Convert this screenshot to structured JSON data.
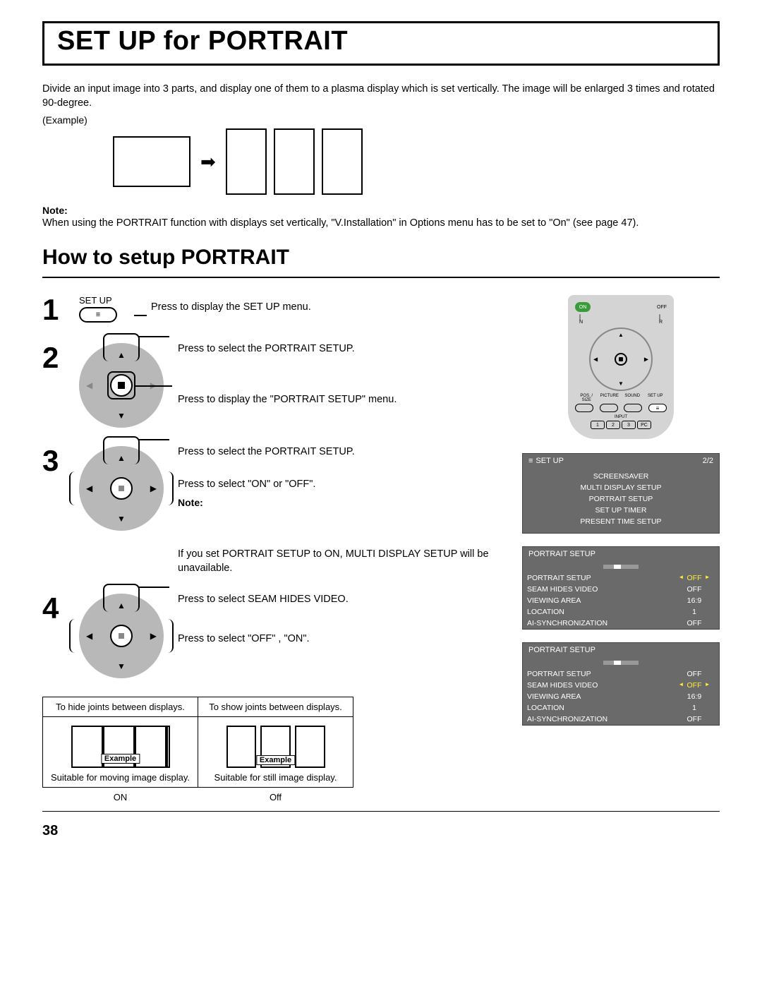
{
  "page_number": "38",
  "title": "SET UP for PORTRAIT",
  "intro": "Divide an input image into 3 parts, and display one of them to a plasma display which is set vertically. The image will be enlarged 3 times and rotated 90-degree.",
  "example_label": "(Example)",
  "note_label": "Note:",
  "note_text": "When using the PORTRAIT function with displays set vertically, \"V.Installation\" in Options menu has to be set to \"On\" (see page 47).",
  "section_heading": "How to setup PORTRAIT",
  "steps": {
    "s1": {
      "num": "1",
      "setup_label": "SET UP",
      "text": "Press to display the SET UP menu."
    },
    "s2": {
      "num": "2",
      "line1": "Press to select the PORTRAIT SETUP.",
      "line2": "Press to display the \"PORTRAIT SETUP\" menu."
    },
    "s3": {
      "num": "3",
      "line1": "Press to select the PORTRAIT SETUP.",
      "line2": "Press to select \"ON\" or \"OFF\".",
      "note_label": "Note:",
      "note_text": "If you set PORTRAIT SETUP to ON, MULTI DISPLAY SETUP will be unavailable."
    },
    "s4": {
      "num": "4",
      "line1": "Press to select SEAM HIDES VIDEO.",
      "line2": "Press to select \"OFF\" , \"ON\"."
    }
  },
  "seam": {
    "hide_header": "To hide joints between displays.",
    "show_header": "To show joints between displays.",
    "example_tag": "Example",
    "hide_caption": "Suitable for moving image display.",
    "show_caption": "Suitable for still image display.",
    "on": "ON",
    "off": "Off"
  },
  "remote": {
    "on": "ON",
    "off": "OFF",
    "n": "N",
    "r": "R",
    "fn_labels": [
      "POS. / SIZE",
      "PICTURE",
      "SOUND",
      "SET UP"
    ],
    "input_label": "INPUT",
    "inputs": [
      "1",
      "2",
      "3",
      "PC"
    ]
  },
  "osd1": {
    "title": "SET UP",
    "page": "2/2",
    "items": [
      "SCREENSAVER",
      "MULTI DISPLAY SETUP",
      "PORTRAIT SETUP",
      "SET UP TIMER",
      "PRESENT TIME SETUP"
    ]
  },
  "osd2": {
    "title": "PORTRAIT SETUP",
    "rows": [
      {
        "k": "PORTRAIT SETUP",
        "v": "OFF",
        "sel": true,
        "yellow": true
      },
      {
        "k": "SEAM HIDES VIDEO",
        "v": "OFF"
      },
      {
        "k": "VIEWING AREA",
        "v": "16:9"
      },
      {
        "k": "LOCATION",
        "v": "1"
      },
      {
        "k": "AI-SYNCHRONIZATION",
        "v": "OFF"
      }
    ]
  },
  "osd3": {
    "title": "PORTRAIT SETUP",
    "rows": [
      {
        "k": "PORTRAIT SETUP",
        "v": "OFF"
      },
      {
        "k": "SEAM HIDES VIDEO",
        "v": "OFF",
        "sel": true,
        "yellow": true
      },
      {
        "k": "VIEWING AREA",
        "v": "16:9"
      },
      {
        "k": "LOCATION",
        "v": "1"
      },
      {
        "k": "AI-SYNCHRONIZATION",
        "v": "OFF"
      }
    ]
  }
}
